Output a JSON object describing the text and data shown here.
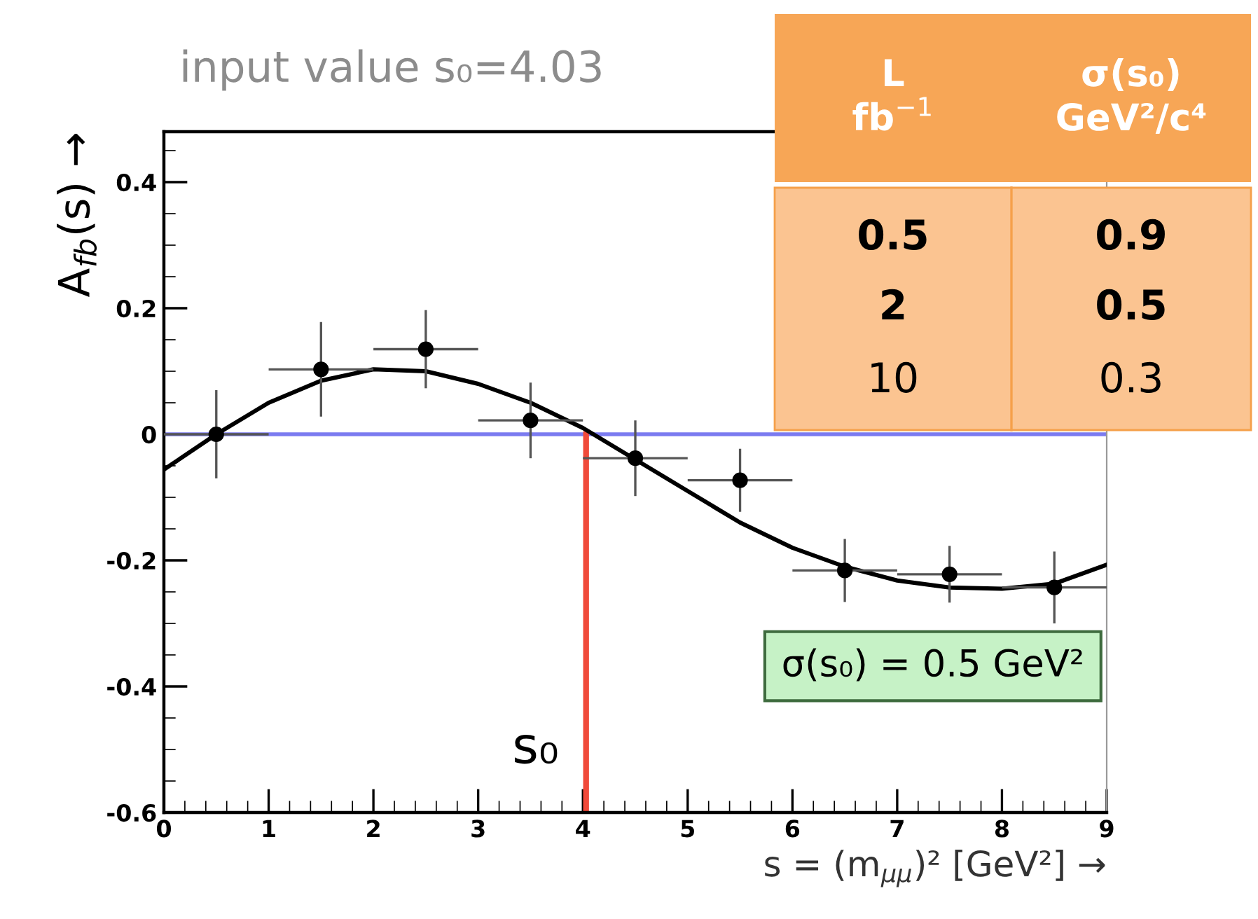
{
  "chart_data": {
    "type": "scatter",
    "title": "input value s₀=4.03",
    "xlabel": "s = (m$_{μμ}$)² [GeV²] →",
    "ylabel": "A$_{fb}$(s) →",
    "xlim": [
      0,
      9
    ],
    "ylim": [
      -0.6,
      0.48
    ],
    "xticks": [
      0,
      1,
      2,
      3,
      4,
      5,
      6,
      7,
      8,
      9
    ],
    "yticks": [
      {
        "value": -0.6,
        "label": "-0.6"
      },
      {
        "value": -0.4,
        "label": "-0.4"
      },
      {
        "value": -0.2,
        "label": "-0.2"
      },
      0,
      0.2,
      0.4
    ],
    "grid": false,
    "series": [
      {
        "marker": "circle",
        "color": "#000000",
        "x": [
          0.5,
          1.5,
          2.5,
          3.5,
          4.5,
          5.5,
          6.5,
          7.5,
          8.5
        ],
        "values": [
          0.0,
          0.103,
          0.135,
          0.022,
          -0.038,
          -0.073,
          -0.216,
          -0.222,
          -0.243
        ],
        "errors": [
          0.07,
          0.075,
          0.062,
          0.06,
          0.06,
          0.05,
          0.05,
          0.045,
          0.057
        ],
        "xerrors": [
          0.5,
          0.5,
          0.5,
          0.5,
          0.5,
          0.5,
          0.5,
          0.5,
          0.5
        ]
      },
      {
        "type": "line",
        "marker": "none",
        "color": "#000000",
        "line_style": "solid",
        "x": [
          0,
          0.5,
          1,
          1.5,
          2,
          2.5,
          3,
          3.5,
          4,
          4.5,
          5,
          5.5,
          6,
          6.5,
          7,
          7.5,
          8,
          8.5,
          9
        ],
        "values": [
          -0.056,
          0.0,
          0.05,
          0.085,
          0.103,
          0.1,
          0.08,
          0.05,
          0.01,
          -0.04,
          -0.09,
          -0.14,
          -0.18,
          -0.21,
          -0.232,
          -0.243,
          -0.245,
          -0.237,
          -0.207
        ]
      }
    ],
    "ref_lines": [
      {
        "axis": "y",
        "value": 0,
        "color": "#7b7bf0"
      },
      {
        "axis": "x",
        "value": 4.03,
        "label": "s₀",
        "color": "#f04a3a"
      }
    ],
    "annotations": [
      "σ(s₀) = 0.5 GeV²",
      "L\nfb$^{−1}$",
      "σ(s₀)\nGeV²/c⁴",
      "0.5",
      "0.9",
      "2",
      "0.5",
      "10",
      "0.3"
    ]
  }
}
